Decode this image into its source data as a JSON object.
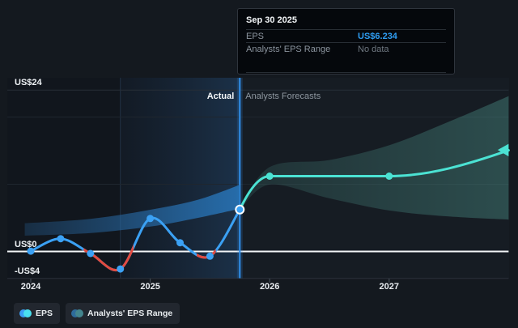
{
  "tooltip": {
    "title": "Sep 30 2025",
    "rows": [
      {
        "label": "EPS",
        "value": "US$6.234"
      },
      {
        "label": "Analysts' EPS Range",
        "value": "No data"
      }
    ]
  },
  "regions": {
    "actual_label": "Actual",
    "forecast_label": "Analysts Forecasts"
  },
  "axes": {
    "y_ticks": [
      {
        "label": "US$24",
        "value": 24
      },
      {
        "label": "US$0",
        "value": 0
      },
      {
        "label": "-US$4",
        "value": -4
      }
    ],
    "x_ticks": [
      {
        "label": "2024",
        "year": 2024
      },
      {
        "label": "2025",
        "year": 2025
      },
      {
        "label": "2026",
        "year": 2026
      },
      {
        "label": "2027",
        "year": 2027
      }
    ]
  },
  "legend": [
    {
      "label": "EPS",
      "dot_colors": [
        "#3b9df3",
        "#49e0ef"
      ]
    },
    {
      "label": "Analysts' EPS Range",
      "dot_colors": [
        "#2e6b9b",
        "#43858e"
      ]
    }
  ],
  "colors": {
    "eps_line": "#3ba1f4",
    "eps_negative": "#e34b40",
    "forecast_line": "#4be2d3",
    "zero_line": "#f2f5f7",
    "divider": "#3191ec",
    "value_blue": "#2f9df2"
  },
  "chart_data": {
    "type": "line",
    "x_unit": "decimal_year",
    "xlim": [
      2023.93,
      2028.05
    ],
    "ylim": [
      -4,
      24
    ],
    "grid": true,
    "gridline_values": [
      24,
      20,
      10,
      0,
      -4
    ],
    "legend_position": "bottom-left",
    "divider_x": 2025.75,
    "highlight_span": [
      2024.75,
      2025.75
    ],
    "highlight_point": {
      "x": 2025.75,
      "eps": 6.234
    },
    "series": [
      {
        "name": "EPS",
        "role": "actual",
        "color": "#3ba1f4",
        "negative_color": "#e34b40",
        "points": [
          [
            2024.0,
            0.05
          ],
          [
            2024.25,
            1.9
          ],
          [
            2024.5,
            -0.3
          ],
          [
            2024.75,
            -2.6
          ],
          [
            2025.0,
            4.9
          ],
          [
            2025.25,
            1.3
          ],
          [
            2025.5,
            -0.7
          ],
          [
            2025.75,
            6.234
          ]
        ]
      },
      {
        "name": "EPS forecast",
        "role": "forecast",
        "color": "#4be2d3",
        "points": [
          [
            2025.75,
            6.234
          ],
          [
            2026.0,
            11.2
          ],
          [
            2027.0,
            11.2
          ],
          [
            2028.0,
            15.05
          ]
        ]
      }
    ],
    "bands": [
      {
        "name": "analysts-eps-range-actual",
        "upper": [
          [
            2023.95,
            4.2
          ],
          [
            2024.5,
            4.85
          ],
          [
            2025.0,
            6.2
          ],
          [
            2025.4,
            7.7
          ],
          [
            2025.75,
            9.9
          ]
        ],
        "lower": [
          [
            2023.95,
            2.35
          ],
          [
            2024.5,
            2.75
          ],
          [
            2025.0,
            3.7
          ],
          [
            2025.4,
            5.0
          ],
          [
            2025.75,
            6.35
          ]
        ]
      },
      {
        "name": "analysts-eps-range-forecast",
        "upper": [
          [
            2025.75,
            6.234
          ],
          [
            2026.0,
            12.55
          ],
          [
            2026.5,
            13.6
          ],
          [
            2027.0,
            15.8
          ],
          [
            2027.5,
            19.3
          ],
          [
            2028.0,
            23.1
          ]
        ],
        "lower": [
          [
            2025.75,
            6.234
          ],
          [
            2026.0,
            9.95
          ],
          [
            2026.5,
            7.9
          ],
          [
            2027.0,
            6.1
          ],
          [
            2027.5,
            5.2
          ],
          [
            2028.0,
            4.75
          ]
        ]
      }
    ]
  }
}
